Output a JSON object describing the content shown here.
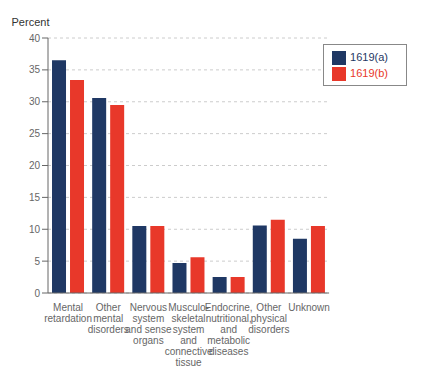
{
  "chart_data": {
    "type": "bar",
    "ylabel": "Percent",
    "categories": [
      "Mental\nretardation",
      "Other\nmental\ndisorders",
      "Nervous\nsystem\nand sense\norgans",
      "Musculo-\nskeletal\nsystem\nand\nconnective\ntissue",
      "Endocrine,\nnutritional,\nand\nmetabolic\ndiseases",
      "Other\nphysical\ndisorders",
      "Unknown"
    ],
    "series": [
      {
        "name": "1619(a)",
        "color": "#1f3864",
        "values": [
          36.5,
          30.6,
          10.5,
          4.7,
          2.5,
          10.6,
          8.5
        ]
      },
      {
        "name": "1619(b)",
        "color": "#e8382a",
        "values": [
          33.4,
          29.5,
          10.5,
          5.6,
          2.5,
          11.5,
          10.5
        ]
      }
    ],
    "ylim": [
      0,
      40
    ],
    "yticks": [
      0,
      5,
      10,
      15,
      20,
      25,
      30,
      35,
      40
    ],
    "grid": true,
    "legend": "upper right"
  }
}
